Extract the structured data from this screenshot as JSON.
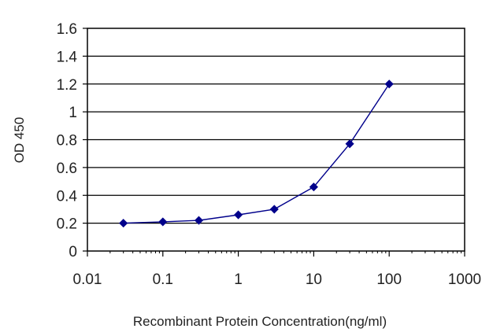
{
  "chart_data": {
    "type": "line",
    "xlabel": "Recombinant Protein Concentration(ng/ml)",
    "ylabel": "OD 450",
    "x_scale": "log",
    "xlim": [
      0.01,
      1000
    ],
    "ylim": [
      0,
      1.6
    ],
    "x_ticks": [
      0.01,
      0.1,
      1,
      10,
      100,
      1000
    ],
    "x_tick_labels": [
      "0.01",
      "0.1",
      "1",
      "10",
      "100",
      "1000"
    ],
    "y_ticks": [
      0,
      0.2,
      0.4,
      0.6,
      0.8,
      1,
      1.2,
      1.4,
      1.6
    ],
    "y_tick_labels": [
      "0",
      "0.2",
      "0.4",
      "0.6",
      "0.8",
      "1",
      "1.2",
      "1.4",
      "1.6"
    ],
    "grid": "horizontal",
    "legend": "none",
    "series": [
      {
        "x": [
          0.03,
          0.1,
          0.3,
          1,
          3,
          10,
          30,
          100
        ],
        "y": [
          0.2,
          0.21,
          0.22,
          0.26,
          0.3,
          0.46,
          0.77,
          1.2
        ],
        "color": "#00008b"
      }
    ]
  }
}
